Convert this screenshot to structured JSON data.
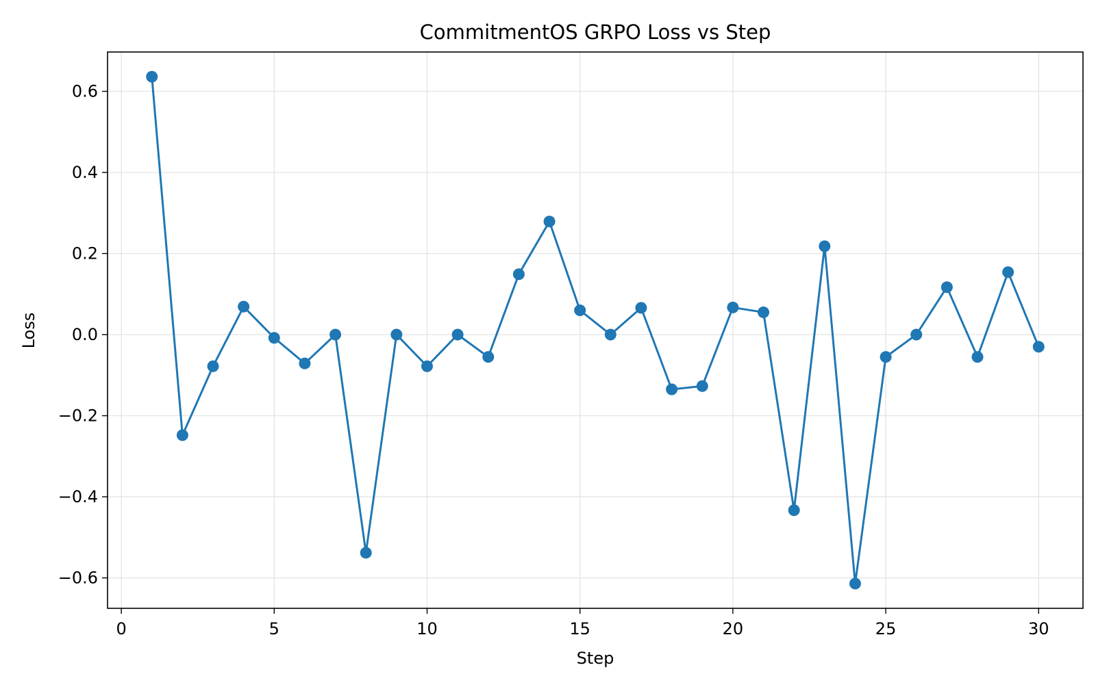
{
  "chart_data": {
    "type": "line",
    "title": "CommitmentOS GRPO Loss vs Step",
    "xlabel": "Step",
    "ylabel": "Loss",
    "xlim": [
      -0.45,
      31.45
    ],
    "ylim": [
      -0.675,
      0.697
    ],
    "xticks": [
      0,
      5,
      10,
      15,
      20,
      25,
      30
    ],
    "xtick_labels": [
      "0",
      "5",
      "10",
      "15",
      "20",
      "25",
      "30"
    ],
    "yticks": [
      -0.6,
      -0.4,
      -0.2,
      0.0,
      0.2,
      0.4,
      0.6
    ],
    "ytick_labels": [
      "−0.6",
      "−0.4",
      "−0.2",
      "0.0",
      "0.2",
      "0.4",
      "0.6"
    ],
    "grid": true,
    "legend": "none",
    "series": [
      {
        "color": "#1f77b4",
        "marker": "circle",
        "x": [
          1,
          2,
          3,
          4,
          5,
          6,
          7,
          8,
          9,
          10,
          11,
          12,
          13,
          14,
          15,
          16,
          17,
          18,
          19,
          20,
          21,
          22,
          23,
          24,
          25,
          26,
          27,
          28,
          29,
          30
        ],
        "y": [
          0.636,
          -0.248,
          -0.078,
          0.069,
          -0.008,
          -0.071,
          0.0,
          -0.538,
          0.0,
          -0.078,
          0.0,
          -0.055,
          0.149,
          0.279,
          0.06,
          0.0,
          0.066,
          -0.135,
          -0.127,
          0.067,
          0.055,
          -0.433,
          0.218,
          -0.614,
          -0.055,
          0.0,
          0.117,
          -0.055,
          0.154,
          -0.03
        ]
      }
    ]
  }
}
